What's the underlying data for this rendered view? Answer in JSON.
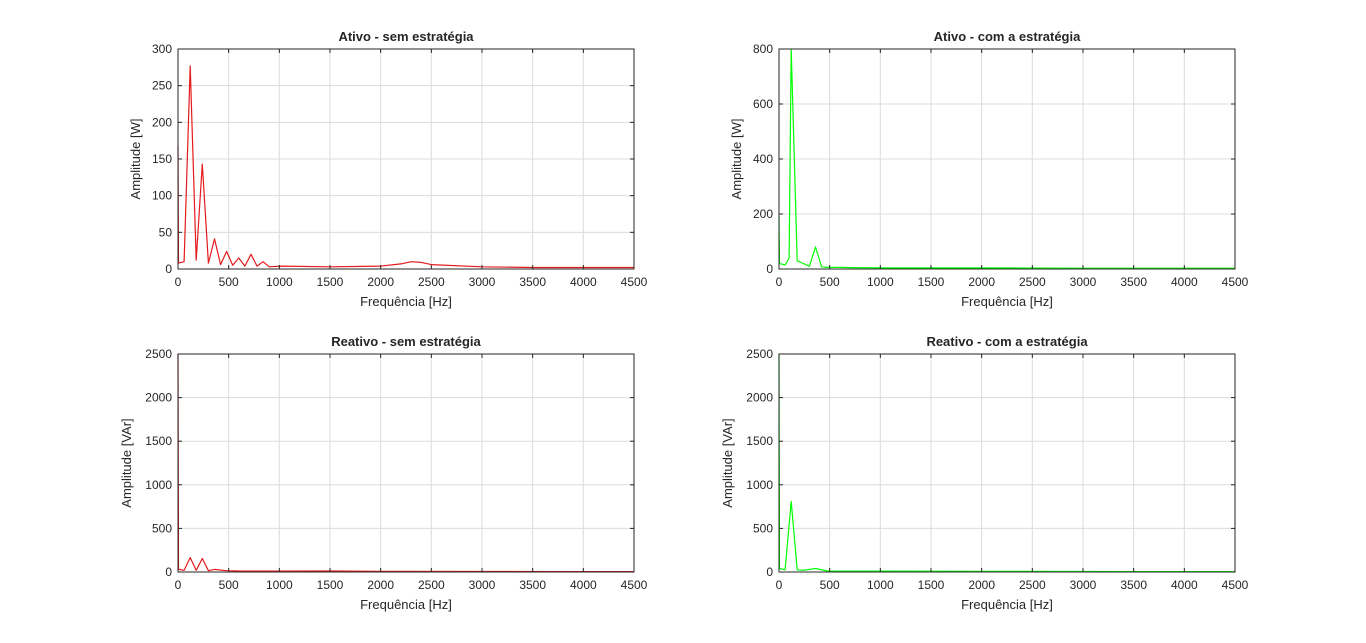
{
  "chart_data": [
    {
      "type": "line",
      "title": "Ativo - sem estratégia",
      "xlabel": "Frequência [Hz]",
      "ylabel": "Amplitude [W]",
      "xlim": [
        0,
        4500
      ],
      "ylim": [
        0,
        300
      ],
      "xticks": [
        0,
        500,
        1000,
        1500,
        2000,
        2500,
        3000,
        3500,
        4000,
        4500
      ],
      "yticks": [
        0,
        50,
        100,
        150,
        200,
        250,
        300
      ],
      "grid": true,
      "color": "#e41a1c",
      "series": [
        {
          "x": [
            0,
            5,
            60,
            120,
            180,
            240,
            300,
            360,
            420,
            480,
            540,
            600,
            660,
            720,
            780,
            840,
            900,
            1020,
            1500,
            2000,
            2200,
            2300,
            2400,
            2500,
            3000,
            3500,
            4000,
            4500
          ],
          "y": [
            168,
            8,
            10,
            277,
            12,
            143,
            8,
            41,
            6,
            24,
            5,
            15,
            4,
            20,
            4,
            10,
            3,
            4,
            3,
            4,
            7,
            10,
            9,
            6,
            3,
            2,
            2,
            2
          ]
        }
      ]
    },
    {
      "type": "line",
      "title": "Ativo - com a estratégia",
      "xlabel": "Frequência [Hz]",
      "ylabel": "Amplitude [W]",
      "xlim": [
        0,
        4500
      ],
      "ylim": [
        0,
        800
      ],
      "xticks": [
        0,
        500,
        1000,
        1500,
        2000,
        2500,
        3000,
        3500,
        4000,
        4500
      ],
      "yticks": [
        0,
        200,
        400,
        600,
        800
      ],
      "grid": true,
      "color": "#00ff00",
      "series": [
        {
          "x": [
            0,
            5,
            60,
            100,
            120,
            180,
            240,
            300,
            360,
            420,
            480,
            600,
            720,
            1000,
            2000,
            3000,
            4000,
            4500
          ],
          "y": [
            190,
            20,
            15,
            40,
            800,
            30,
            20,
            10,
            80,
            8,
            6,
            6,
            5,
            4,
            4,
            3,
            3,
            3
          ]
        }
      ]
    },
    {
      "type": "line",
      "title": "Reativo - sem estratégia",
      "xlabel": "Frequência [Hz]",
      "ylabel": "Amplitude [VAr]",
      "xlim": [
        0,
        4500
      ],
      "ylim": [
        0,
        2500
      ],
      "xticks": [
        0,
        500,
        1000,
        1500,
        2000,
        2500,
        3000,
        3500,
        4000,
        4500
      ],
      "yticks": [
        0,
        500,
        1000,
        1500,
        2000,
        2500
      ],
      "grid": true,
      "color": "#e41a1c",
      "series": [
        {
          "x": [
            0,
            5,
            60,
            120,
            180,
            240,
            300,
            360,
            480,
            600,
            1000,
            1500,
            2000,
            3000,
            4000,
            4500
          ],
          "y": [
            2500,
            30,
            20,
            165,
            20,
            155,
            15,
            30,
            15,
            12,
            10,
            12,
            8,
            6,
            5,
            5
          ]
        }
      ]
    },
    {
      "type": "line",
      "title": "Reativo - com a estratégia",
      "xlabel": "Frequência [Hz]",
      "ylabel": "Amplitude [VAr]",
      "xlim": [
        0,
        4500
      ],
      "ylim": [
        0,
        2500
      ],
      "xticks": [
        0,
        500,
        1000,
        1500,
        2000,
        2500,
        3000,
        3500,
        4000,
        4500
      ],
      "yticks": [
        0,
        500,
        1000,
        1500,
        2000,
        2500
      ],
      "grid": true,
      "color": "#00ff00",
      "series": [
        {
          "x": [
            0,
            5,
            60,
            120,
            180,
            240,
            360,
            480,
            600,
            1000,
            2000,
            3000,
            4000,
            4500
          ],
          "y": [
            2500,
            40,
            25,
            810,
            25,
            20,
            40,
            12,
            10,
            10,
            8,
            6,
            5,
            5
          ]
        }
      ]
    }
  ]
}
